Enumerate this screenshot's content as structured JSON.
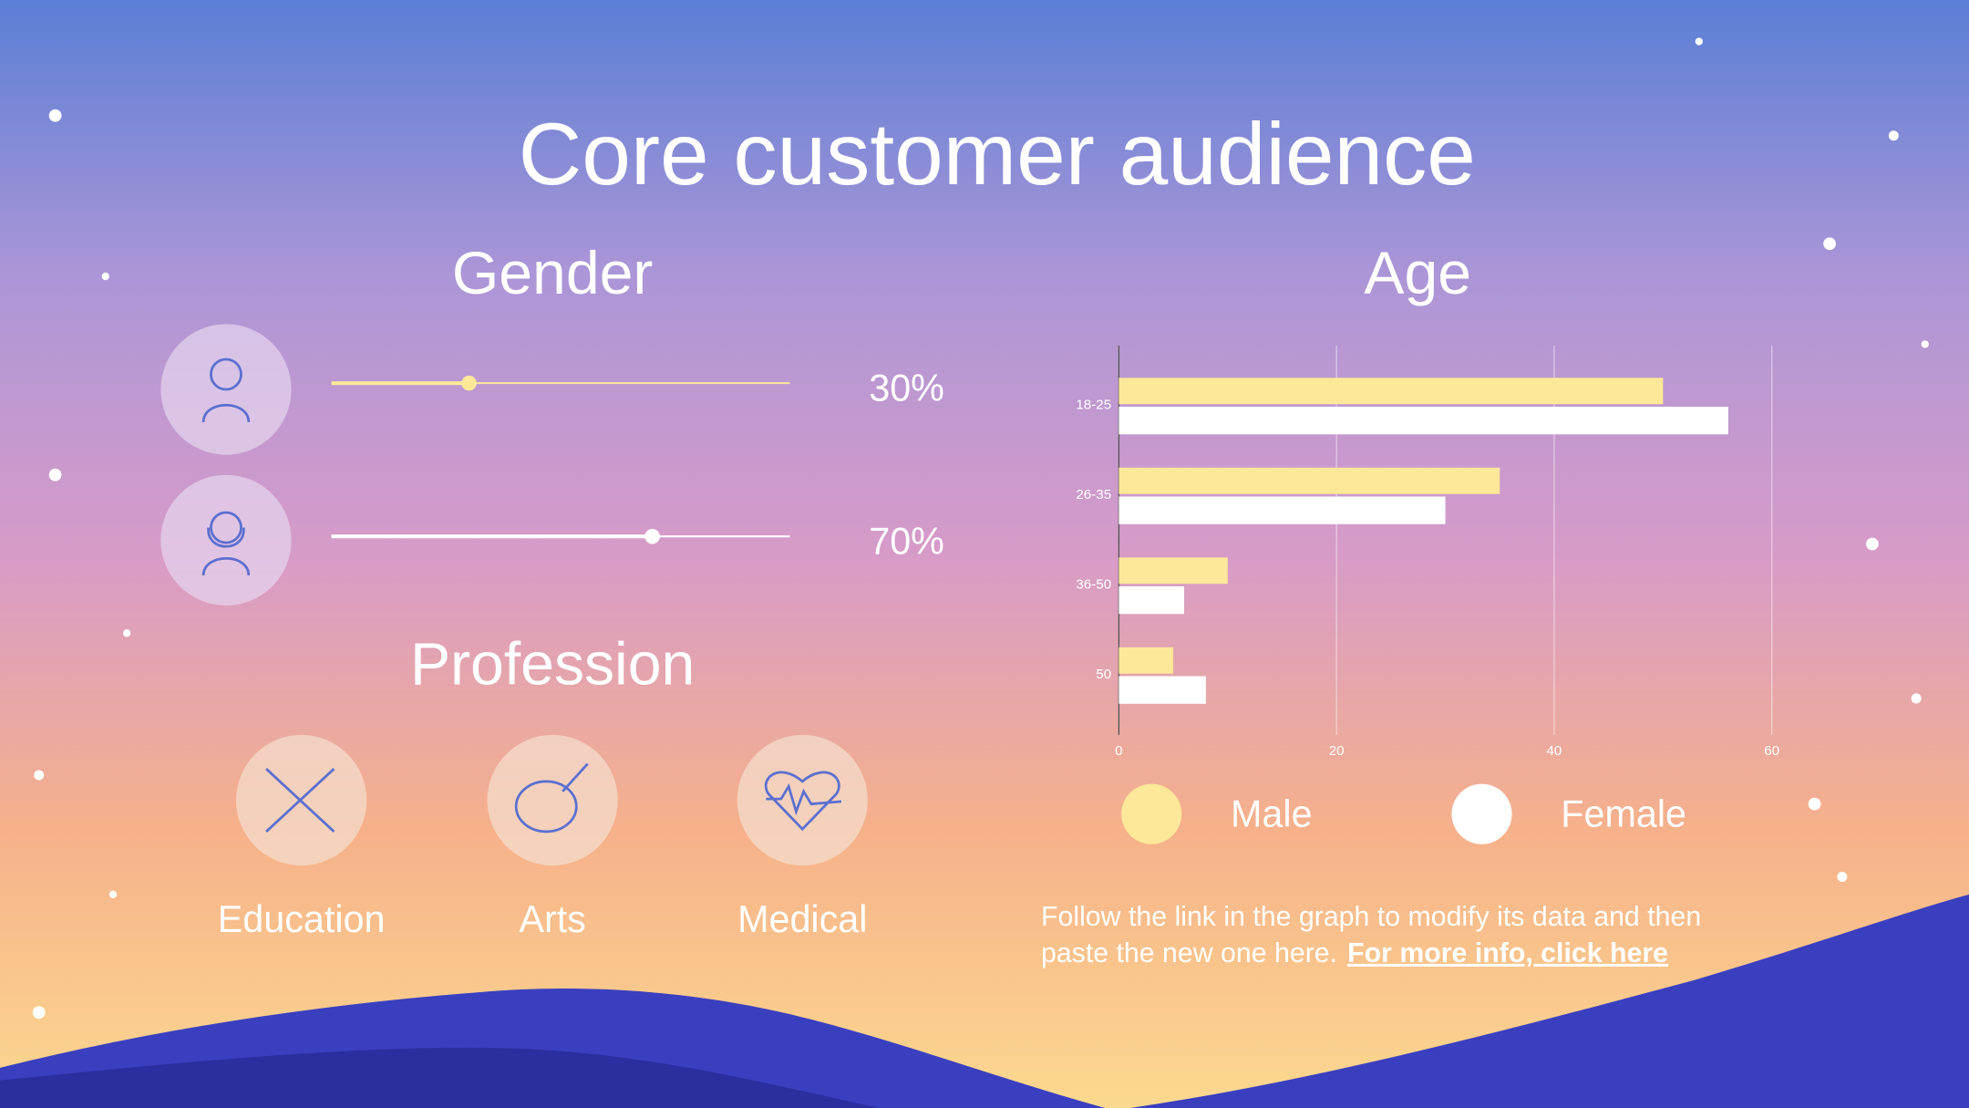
{
  "title": "Core customer audience",
  "gender": {
    "heading": "Gender",
    "values": [
      30,
      70
    ],
    "value_labels": [
      "30%",
      "70%"
    ]
  },
  "profession": {
    "heading": "Profession",
    "items": [
      "Education",
      "Arts",
      "Medical"
    ]
  },
  "chart_data": {
    "type": "bar",
    "orientation": "horizontal",
    "title": "Age",
    "categories": [
      "18-25",
      "26-35",
      "36-50",
      "50"
    ],
    "series": [
      {
        "name": "Male",
        "color": "#fde89a",
        "values": [
          50,
          35,
          10,
          5
        ]
      },
      {
        "name": "Female",
        "color": "#ffffff",
        "values": [
          56,
          30,
          6,
          8
        ]
      }
    ],
    "xlim": [
      0,
      60
    ],
    "xticks": [
      0,
      20,
      40,
      60
    ],
    "grid": true
  },
  "note": {
    "text": "Follow the link in the graph to modify its data and then paste the new one here.",
    "link": "For more info, click here"
  }
}
